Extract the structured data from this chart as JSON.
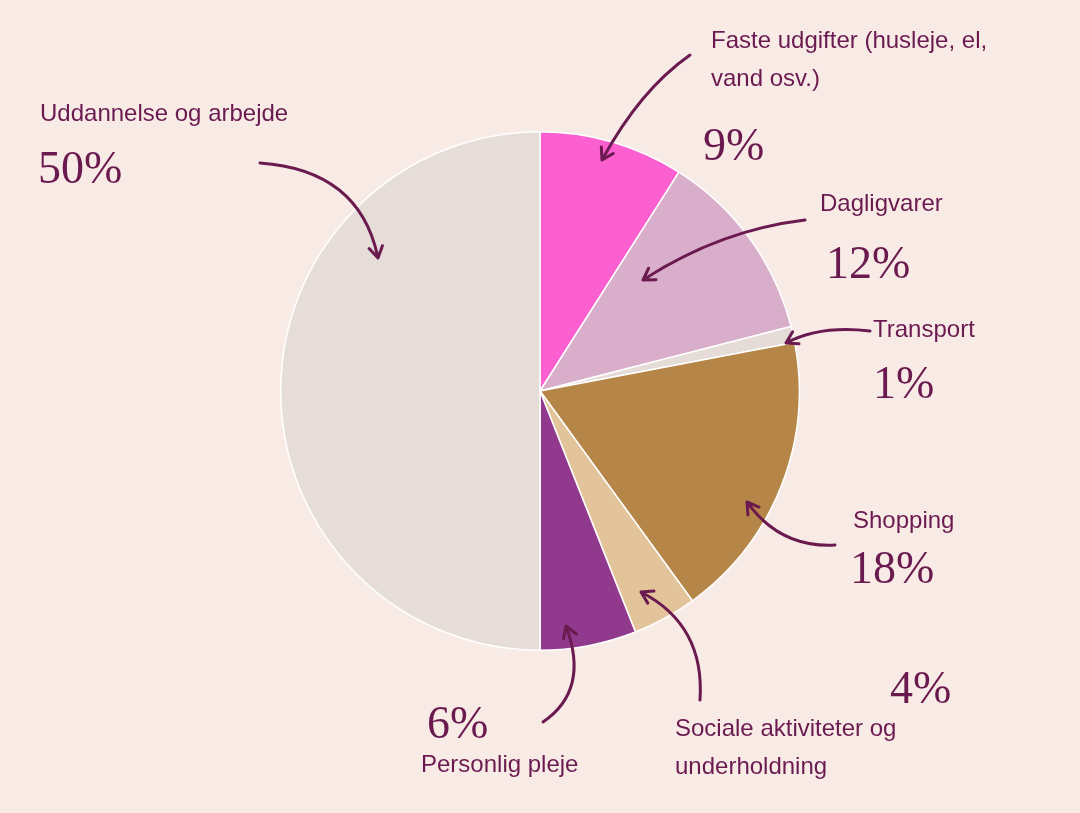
{
  "chart_data": {
    "type": "pie",
    "categories": [
      "Faste udgifter (husleje, el, vand osv.)",
      "Dagligvarer",
      "Transport",
      "Shopping",
      "Sociale aktiviteter og underholdning",
      "Personlig pleje",
      "Uddannelse og arbejde"
    ],
    "values": [
      9,
      12,
      1,
      18,
      4,
      6,
      50
    ],
    "colors": [
      "#fb5fd0",
      "#d9aecb",
      "#e5dcd8",
      "#b58647",
      "#e3c39a",
      "#913a8d",
      "#e6dcd8"
    ],
    "value_labels": [
      "9%",
      "12%",
      "1%",
      "18%",
      "4%",
      "6%",
      "50%"
    ],
    "legend": false
  }
}
